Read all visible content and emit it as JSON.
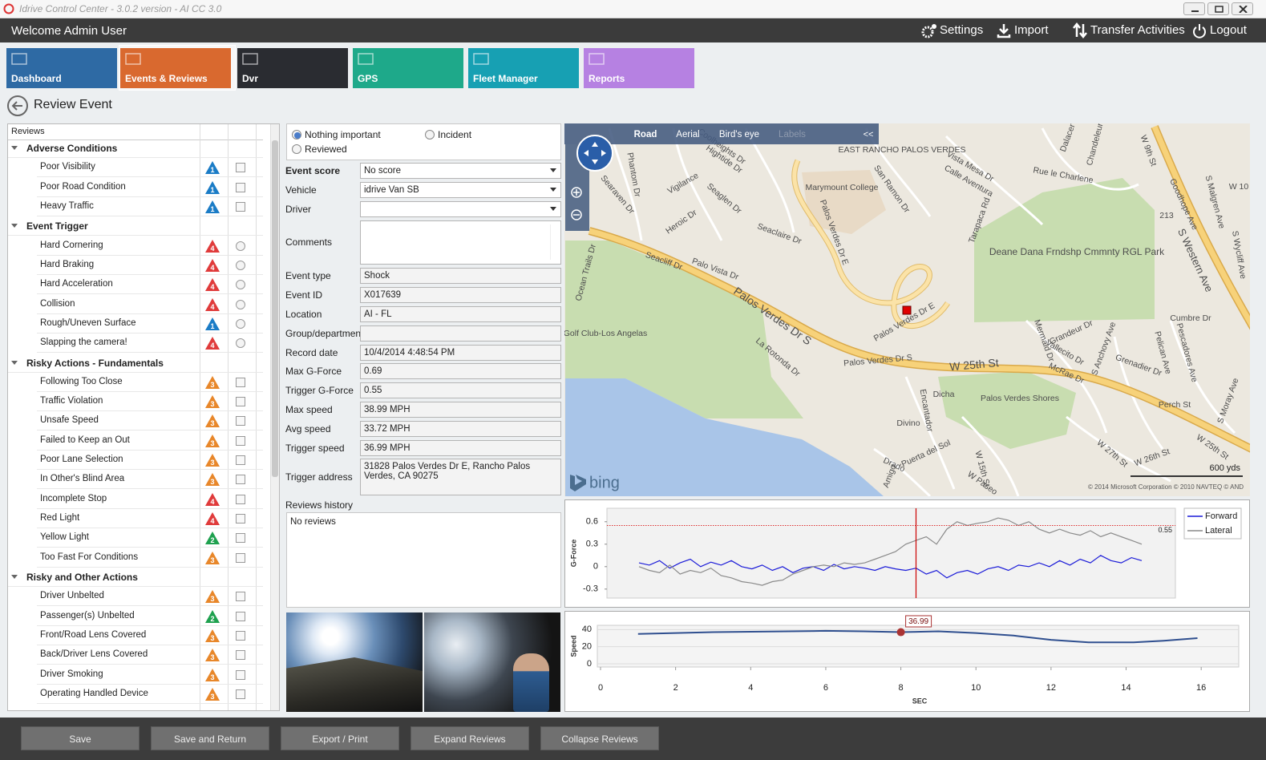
{
  "window": {
    "title": "Idrive Control Center - 3.0.2 version - AI CC 3.0"
  },
  "header": {
    "welcome": "Welcome Admin User",
    "menu": [
      "Settings",
      "Import",
      "Transfer Activities",
      "Logout"
    ]
  },
  "tabs": [
    {
      "label": "Dashboard",
      "color": "#2e6aa4"
    },
    {
      "label": "Events & Reviews",
      "color": "#d9692f"
    },
    {
      "label": "Dvr",
      "color": "#2a2c31"
    },
    {
      "label": "GPS",
      "color": "#1ea98a"
    },
    {
      "label": "Fleet Manager",
      "color": "#17a0b3"
    },
    {
      "label": "Reports",
      "color": "#b681e2"
    }
  ],
  "page_title": "Review Event",
  "reviews": {
    "header": "Reviews",
    "groups": [
      {
        "name": "Adverse Conditions",
        "control": "checkbox",
        "items": [
          {
            "label": "Poor Visibility",
            "level": 1
          },
          {
            "label": "Poor Road Condition",
            "level": 1
          },
          {
            "label": "Heavy Traffic",
            "level": 1
          }
        ]
      },
      {
        "name": "Event Trigger",
        "control": "radio",
        "items": [
          {
            "label": "Hard Cornering",
            "level": 4
          },
          {
            "label": "Hard Braking",
            "level": 4
          },
          {
            "label": "Hard Acceleration",
            "level": 4
          },
          {
            "label": "Collision",
            "level": 4
          },
          {
            "label": "Rough/Uneven Surface",
            "level": 1
          },
          {
            "label": "Slapping the camera!",
            "level": 4
          }
        ]
      },
      {
        "name": "Risky Actions - Fundamentals",
        "control": "checkbox",
        "items": [
          {
            "label": "Following Too Close",
            "level": 3
          },
          {
            "label": "Traffic Violation",
            "level": 3
          },
          {
            "label": "Unsafe Speed",
            "level": 3
          },
          {
            "label": "Failed to Keep an Out",
            "level": 3
          },
          {
            "label": "Poor Lane Selection",
            "level": 3
          },
          {
            "label": "In Other's Blind Area",
            "level": 3
          },
          {
            "label": "Incomplete Stop",
            "level": 4
          },
          {
            "label": "Red Light",
            "level": 4
          },
          {
            "label": "Yellow Light",
            "level": 2
          },
          {
            "label": "Too Fast For Conditions",
            "level": 3
          }
        ]
      },
      {
        "name": "Risky and Other Actions",
        "control": "checkbox",
        "items": [
          {
            "label": "Driver Unbelted",
            "level": 3
          },
          {
            "label": "Passenger(s) Unbelted",
            "level": 2
          },
          {
            "label": "Front/Road Lens Covered",
            "level": 3
          },
          {
            "label": "Back/Driver Lens Covered",
            "level": 3
          },
          {
            "label": "Driver Smoking",
            "level": 3
          },
          {
            "label": "Operating Handled Device",
            "level": 3
          }
        ]
      }
    ]
  },
  "status": {
    "options": [
      "Nothing important",
      "Incident",
      "Reviewed"
    ],
    "selected": 0
  },
  "fields": [
    {
      "label": "Event score",
      "value": "No score",
      "control": "select"
    },
    {
      "label": "Vehicle",
      "value": "idrive Van SB",
      "control": "select"
    },
    {
      "label": "Driver",
      "control": "select"
    },
    {
      "label": "Comments",
      "control": "textarea"
    },
    {
      "label": "Event type",
      "value": "Shock"
    },
    {
      "label": "Event ID",
      "value": "X017639"
    },
    {
      "label": "Location",
      "value": "AI - FL"
    },
    {
      "label": "Group/department"
    },
    {
      "label": "Record date",
      "value": "10/4/2014 4:48:54 PM"
    },
    {
      "label": "Max G-Force",
      "value": "0.69"
    },
    {
      "label": "Trigger G-Force",
      "value": "0.55"
    },
    {
      "label": "Max speed",
      "value": "38.99 MPH"
    },
    {
      "label": "Avg speed",
      "value": "33.72 MPH"
    },
    {
      "label": "Trigger speed",
      "value": "36.99 MPH"
    },
    {
      "label": "Trigger address",
      "value": "31828 Palos Verdes Dr E, Rancho Palos Verdes, CA 90275",
      "control": "textarea"
    }
  ],
  "history": {
    "label": "Reviews history",
    "value": "No reviews"
  },
  "map": {
    "tabs": [
      "Road",
      "Aerial",
      "Bird's eye",
      "Labels"
    ],
    "collapse": "<<",
    "brand": "bing",
    "scale": "600 yds",
    "copyright": "© 2014 Microsoft Corporation  © 2010 NAVTEQ  © AND",
    "labels": [
      "Coolheights Dr",
      "Phantom Dr",
      "Hightide Dr",
      "Vigilance",
      "Seaglen Dr",
      "Searaven Dr",
      "Heroic Dr",
      "Seaclaire Dr",
      "Marymount College",
      "EAST RANCHO PALOS VERDES",
      "San Ramon Dr",
      "Vista Mesa Dr",
      "Calle Aventura",
      "Rue le Charlene",
      "Dalacer",
      "Chandeleur",
      "W 9th St",
      "Goodhope Ave",
      "S Malgren Ave",
      "W 10",
      "213",
      "Palos Verdes Dr E",
      "Tarapaca Rd",
      "Deane Dana Frndshp Cmmnty RGL Park",
      "S Western Ave",
      "S Wycliff Ave",
      "Seacliff Dr",
      "Palo Vista Dr",
      "Ocean Trails Dr",
      "Palos Verdes Dr S",
      "Palos Verdes Dr E",
      "Golf Club-Los Angelas",
      "La Rotonda Dr",
      "Palos Verdes Dr S",
      "W 25th St",
      "Cumbre Dr",
      "Grandeur Dr",
      "Mermaid Dr",
      "Vallecito Dr",
      "S Anchovy Ave",
      "McRae Dr",
      "Grenadier Dr",
      "Pelican Ave",
      "Pescadores Ave",
      "Dicha",
      "Palos Verdes Shores",
      "Encantador",
      "Perch St",
      "S Moray Ave",
      "Divino",
      "Puerta del Sol",
      "W 27th St",
      "W 26th St",
      "W 25th St",
      "Drado",
      "Amigo",
      "W 15th St",
      "W Paseo"
    ]
  },
  "buttons": [
    "Save",
    "Save and Return",
    "Export / Print",
    "Expand Reviews",
    "Collapse Reviews"
  ],
  "chart_data": [
    {
      "type": "line",
      "y_label": "G-Force",
      "ylim": [
        -0.42,
        0.78
      ],
      "yticks": [
        -0.3,
        0,
        0.3,
        0.6
      ],
      "threshold": 0.55,
      "trigger_index": 27,
      "legend": "right",
      "series": [
        {
          "name": "Forward",
          "color": "#1a1ad8",
          "values": [
            0.05,
            0.02,
            0.08,
            -0.02,
            0.05,
            0.1,
            0.0,
            0.06,
            0.02,
            0.08,
            0.0,
            -0.03,
            0.02,
            -0.05,
            0.0,
            -0.08,
            -0.02,
            0.0,
            -0.05,
            0.03,
            -0.03,
            0.0,
            -0.02,
            -0.05,
            0.0,
            -0.03,
            -0.05,
            -0.02,
            -0.1,
            -0.05,
            -0.15,
            -0.08,
            -0.05,
            -0.1,
            -0.03,
            0.0,
            -0.05,
            0.02,
            0.0,
            0.05,
            0.0,
            0.08,
            0.02,
            0.1,
            0.05,
            0.15,
            0.08,
            0.05,
            0.12,
            0.08
          ]
        },
        {
          "name": "Lateral",
          "color": "#8a8a8a",
          "values": [
            0.0,
            -0.05,
            -0.08,
            0.02,
            -0.1,
            -0.05,
            -0.08,
            -0.02,
            -0.12,
            -0.15,
            -0.2,
            -0.22,
            -0.25,
            -0.2,
            -0.18,
            -0.1,
            -0.05,
            0,
            0.02,
            0,
            0.05,
            0.03,
            0.05,
            0.1,
            0.15,
            0.2,
            0.3,
            0.35,
            0.4,
            0.3,
            0.5,
            0.6,
            0.55,
            0.58,
            0.6,
            0.65,
            0.62,
            0.55,
            0.6,
            0.5,
            0.45,
            0.5,
            0.45,
            0.42,
            0.48,
            0.4,
            0.45,
            0.4,
            0.35,
            0.3
          ]
        }
      ]
    },
    {
      "type": "line",
      "y_label": "Speed",
      "x_label": "SEC",
      "xlim": [
        0,
        17
      ],
      "ylim": [
        0,
        45
      ],
      "xticks": [
        0,
        2,
        4,
        6,
        8,
        10,
        12,
        14,
        16
      ],
      "yticks": [
        0,
        20,
        40
      ],
      "grid": true,
      "color": "#2f4f8f",
      "x": [
        1,
        2,
        3,
        4,
        5,
        6,
        7,
        8,
        9,
        10,
        11,
        12,
        13,
        14.2,
        15,
        15.9
      ],
      "values": [
        35,
        36,
        37,
        37.5,
        38,
        38.5,
        38,
        36.99,
        38,
        36,
        33,
        28,
        25,
        25,
        27,
        30
      ],
      "annotation": {
        "x": 8,
        "value": 36.99
      }
    }
  ]
}
